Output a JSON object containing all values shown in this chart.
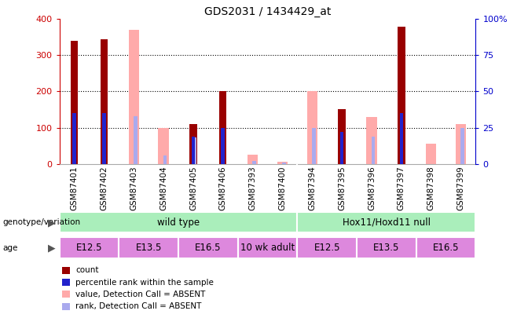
{
  "title": "GDS2031 / 1434429_at",
  "samples": [
    "GSM87401",
    "GSM87402",
    "GSM87403",
    "GSM87404",
    "GSM87405",
    "GSM87406",
    "GSM87393",
    "GSM87400",
    "GSM87394",
    "GSM87395",
    "GSM87396",
    "GSM87397",
    "GSM87398",
    "GSM87399"
  ],
  "count": [
    340,
    345,
    null,
    null,
    110,
    200,
    null,
    null,
    null,
    150,
    null,
    380,
    null,
    null
  ],
  "percentile_rank": [
    35,
    35,
    null,
    null,
    19,
    25,
    null,
    null,
    null,
    22,
    null,
    35,
    null,
    null
  ],
  "value_absent": [
    null,
    null,
    370,
    100,
    null,
    null,
    25,
    5,
    200,
    null,
    130,
    null,
    55,
    110
  ],
  "rank_absent": [
    null,
    null,
    33,
    6,
    18,
    null,
    2,
    1,
    25,
    null,
    19,
    null,
    null,
    25
  ],
  "ylim": [
    0,
    400
  ],
  "y2lim": [
    0,
    100
  ],
  "yticks_left": [
    0,
    100,
    200,
    300,
    400
  ],
  "yticks_right": [
    0,
    25,
    50,
    75,
    100
  ],
  "count_color": "#990000",
  "rank_color": "#2222cc",
  "value_absent_color": "#ffaaaa",
  "rank_absent_color": "#aaaaee",
  "bg_color": "#ffffff",
  "plot_bg": "#ffffff",
  "xtick_bg": "#cccccc",
  "genotype_wt_color": "#99ee99",
  "genotype_null_color": "#66cc66",
  "age_color": "#dd88dd",
  "ylabel_left_color": "#cc0000",
  "ylabel_right_color": "#0000cc",
  "legend_items": [
    {
      "label": "count",
      "color": "#990000"
    },
    {
      "label": "percentile rank within the sample",
      "color": "#2222cc"
    },
    {
      "label": "value, Detection Call = ABSENT",
      "color": "#ffaaaa"
    },
    {
      "label": "rank, Detection Call = ABSENT",
      "color": "#aaaaee"
    }
  ],
  "count_bar_width": 0.25,
  "absent_bar_width": 0.35,
  "rank_bar_width": 0.12
}
